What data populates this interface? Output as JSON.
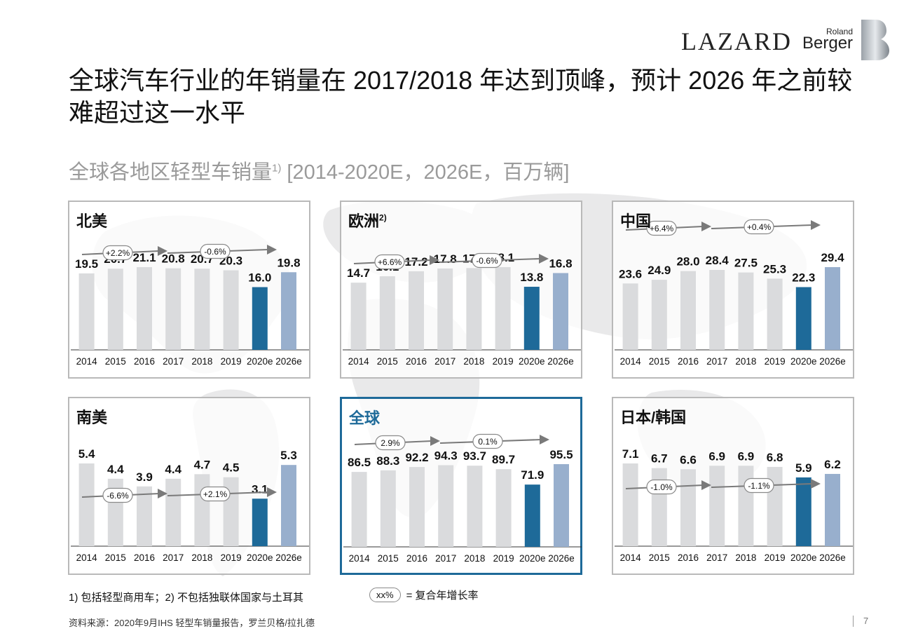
{
  "header": {
    "title": "全球汽车行业的年销量在 2017/2018 年达到顶峰，预计 2026 年之前较难超过这一水平",
    "subtitle_main": "全球各地区轻型车销量",
    "subtitle_sup": "1)",
    "subtitle_rest": " [2014-2020E，2026E，百万辆]"
  },
  "logos": {
    "lazard": "LAZARD",
    "roland": "Roland",
    "berger": "Berger"
  },
  "colors": {
    "historical_bar": "#dadbdd",
    "forecast_2020": "#1e6a99",
    "forecast_2026": "#98afcd",
    "highlight_border": "#1e6a99",
    "arrow": "#7a7a7a"
  },
  "chart_data": [
    {
      "type": "bar",
      "title": "北美",
      "title_sup": "",
      "categories": [
        "2014",
        "2015",
        "2016",
        "2017",
        "2018",
        "2019",
        "2020e",
        "2026e"
      ],
      "values": [
        19.5,
        20.7,
        21.1,
        20.8,
        20.7,
        20.3,
        16.0,
        19.8
      ],
      "labels": [
        "19.5",
        "20.7",
        "21.1",
        "20.8",
        "20.7",
        "20.3",
        "16.0",
        "19.8"
      ],
      "cagr": [
        "+2.2%",
        "-0.6%"
      ]
    },
    {
      "type": "bar",
      "title": "欧洲",
      "title_sup": "2)",
      "categories": [
        "2014",
        "2015",
        "2016",
        "2017",
        "2018",
        "2019",
        "2020e",
        "2026e"
      ],
      "values": [
        14.7,
        16.1,
        17.2,
        17.8,
        17.9,
        18.1,
        13.8,
        16.8
      ],
      "labels": [
        "14.7",
        "16.1",
        "17.2",
        "17.8",
        "17.9",
        "18.1",
        "13.8",
        "16.8"
      ],
      "cagr": [
        "+6.6%",
        "-0.6%"
      ]
    },
    {
      "type": "bar",
      "title": "中国",
      "title_sup": "",
      "categories": [
        "2014",
        "2015",
        "2016",
        "2017",
        "2018",
        "2019",
        "2020e",
        "2026e"
      ],
      "values": [
        23.6,
        24.9,
        28.0,
        28.4,
        27.5,
        25.3,
        22.3,
        29.4
      ],
      "labels": [
        "23.6",
        "24.9",
        "28.0",
        "28.4",
        "27.5",
        "25.3",
        "22.3",
        "29.4"
      ],
      "cagr": [
        "+6.4%",
        "+0.4%"
      ]
    },
    {
      "type": "bar",
      "title": "南美",
      "title_sup": "",
      "categories": [
        "2014",
        "2015",
        "2016",
        "2017",
        "2018",
        "2019",
        "2020e",
        "2026e"
      ],
      "values": [
        5.4,
        4.4,
        3.9,
        4.4,
        4.7,
        4.5,
        3.1,
        5.3
      ],
      "labels": [
        "5.4",
        "4.4",
        "3.9",
        "4.4",
        "4.7",
        "4.5",
        "3.1",
        "5.3"
      ],
      "cagr": [
        "-6.6%",
        "+2.1%"
      ]
    },
    {
      "type": "bar",
      "title": "全球",
      "title_sup": "",
      "highlight": true,
      "categories": [
        "2014",
        "2015",
        "2016",
        "2017",
        "2018",
        "2019",
        "2020e",
        "2026e"
      ],
      "values": [
        86.5,
        88.3,
        92.2,
        94.3,
        93.7,
        89.7,
        71.9,
        95.5
      ],
      "labels": [
        "86.5",
        "88.3",
        "92.2",
        "94.3",
        "93.7",
        "89.7",
        "71.9",
        "95.5"
      ],
      "cagr": [
        "2.9%",
        "0.1%"
      ]
    },
    {
      "type": "bar",
      "title": "日本/韩国",
      "title_sup": "",
      "categories": [
        "2014",
        "2015",
        "2016",
        "2017",
        "2018",
        "2019",
        "2020e",
        "2026e"
      ],
      "values": [
        7.1,
        6.7,
        6.6,
        6.9,
        6.9,
        6.8,
        5.9,
        6.2
      ],
      "labels": [
        "7.1",
        "6.7",
        "6.6",
        "6.9",
        "6.9",
        "6.8",
        "5.9",
        "6.2"
      ],
      "cagr": [
        "-1.0%",
        "-1.1%"
      ]
    }
  ],
  "footer": {
    "footnote": "1) 包括轻型商用车；2) 不包括独联体国家与土耳其",
    "legend_pill": "xx%",
    "legend_text": "=  复合年增长率",
    "source": "资料来源：2020年9月IHS 轻型车销量报告，罗兰贝格/拉扎德",
    "page_number": "7"
  }
}
